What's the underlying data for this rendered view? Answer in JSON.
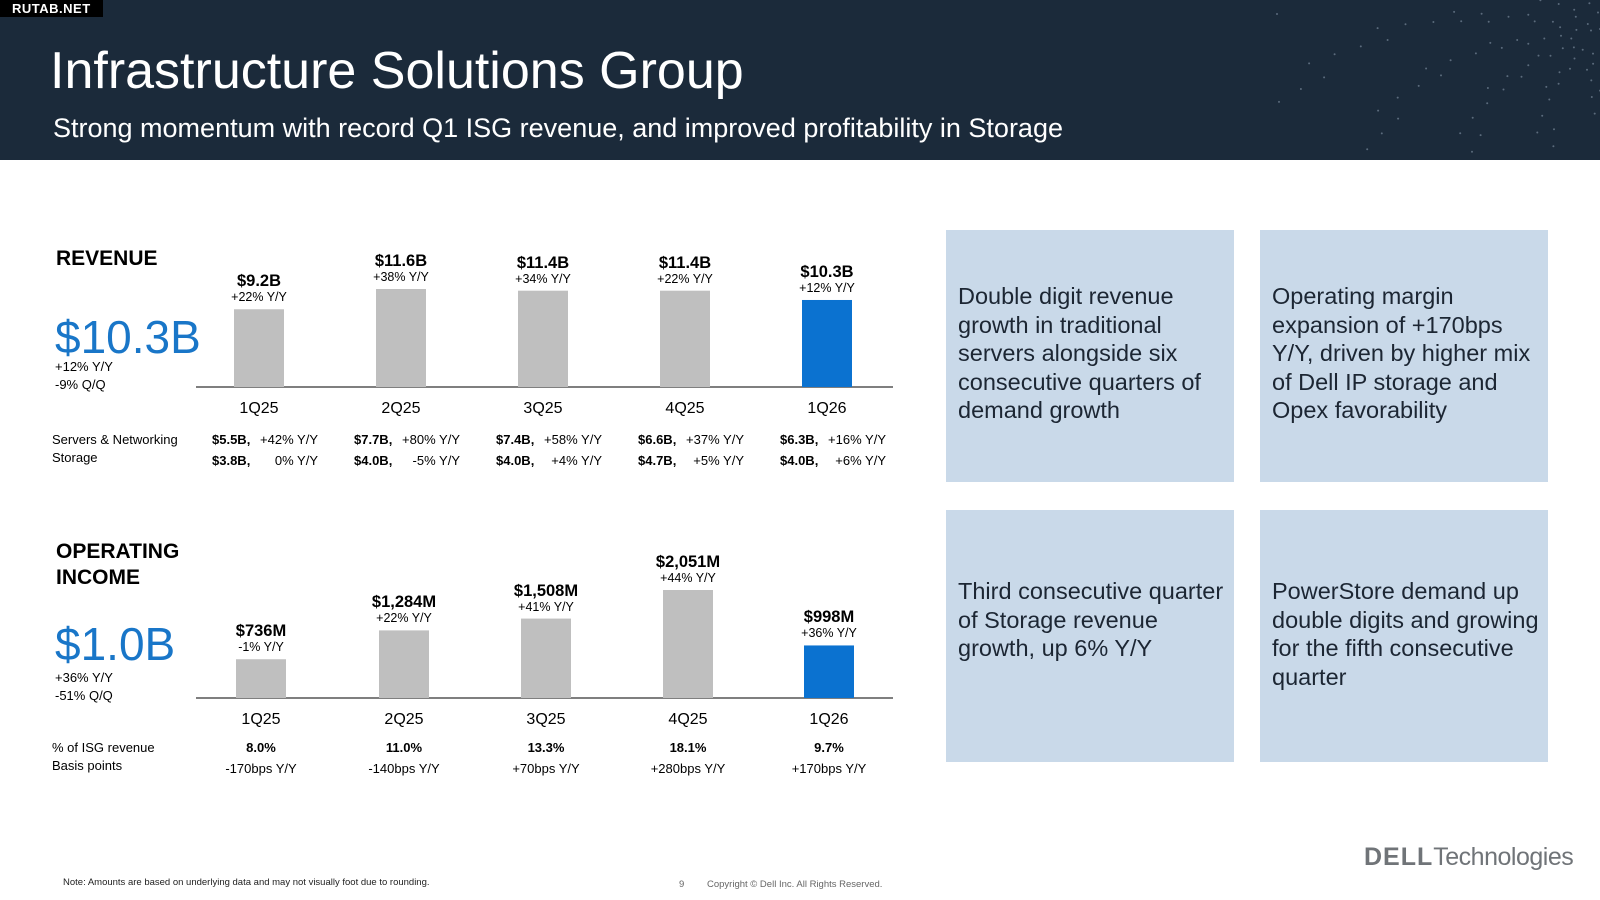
{
  "watermark": "RUTAB.NET",
  "header": {
    "title": "Infrastructure Solutions Group",
    "subtitle": "Strong momentum with record Q1 ISG revenue, and improved profitability in Storage"
  },
  "colors": {
    "header_bg": "#1b2a3a",
    "bar_gray": "#bfbfbf",
    "bar_highlight": "#0b72d0",
    "accent_text": "#1976c8",
    "tile_bg": "#c9d9e9"
  },
  "revenue": {
    "section_title": "REVENUE",
    "big_value": "$10.3B",
    "yy": "+12% Y/Y",
    "qq": "-9% Q/Q",
    "row1_label": "Servers & Networking",
    "row2_label": "Storage",
    "quarters": [
      {
        "q": "1Q25",
        "value": "$9.2B",
        "yy": "+22% Y/Y",
        "sn_val": "$5.5B,",
        "sn_yy": "+42% Y/Y",
        "st_val": "$3.8B,",
        "st_yy": "0% Y/Y"
      },
      {
        "q": "2Q25",
        "value": "$11.6B",
        "yy": "+38% Y/Y",
        "sn_val": "$7.7B,",
        "sn_yy": "+80% Y/Y",
        "st_val": "$4.0B,",
        "st_yy": "-5% Y/Y"
      },
      {
        "q": "3Q25",
        "value": "$11.4B",
        "yy": "+34% Y/Y",
        "sn_val": "$7.4B,",
        "sn_yy": "+58% Y/Y",
        "st_val": "$4.0B,",
        "st_yy": "+4% Y/Y"
      },
      {
        "q": "4Q25",
        "value": "$11.4B",
        "yy": "+22% Y/Y",
        "sn_val": "$6.6B,",
        "sn_yy": "+37% Y/Y",
        "st_val": "$4.7B,",
        "st_yy": "+5% Y/Y"
      },
      {
        "q": "1Q26",
        "value": "$10.3B",
        "yy": "+12% Y/Y",
        "sn_val": "$6.3B,",
        "sn_yy": "+16% Y/Y",
        "st_val": "$4.0B,",
        "st_yy": "+6% Y/Y"
      }
    ]
  },
  "operating": {
    "section_title_1": "OPERATING",
    "section_title_2": "INCOME",
    "big_value": "$1.0B",
    "yy": "+36% Y/Y",
    "qq": "-51% Q/Q",
    "row1_label": "% of ISG revenue",
    "row2_label": "Basis points",
    "quarters": [
      {
        "q": "1Q25",
        "value": "$736M",
        "yy": "-1% Y/Y",
        "pct": "8.0%",
        "bps": "-170bps Y/Y"
      },
      {
        "q": "2Q25",
        "value": "$1,284M",
        "yy": "+22% Y/Y",
        "pct": "11.0%",
        "bps": "-140bps Y/Y"
      },
      {
        "q": "3Q25",
        "value": "$1,508M",
        "yy": "+41% Y/Y",
        "pct": "13.3%",
        "bps": "+70bps Y/Y"
      },
      {
        "q": "4Q25",
        "value": "$2,051M",
        "yy": "+44% Y/Y",
        "pct": "18.1%",
        "bps": "+280bps Y/Y"
      },
      {
        "q": "1Q26",
        "value": "$998M",
        "yy": "+36% Y/Y",
        "pct": "9.7%",
        "bps": "+170bps Y/Y"
      }
    ]
  },
  "chart_data": [
    {
      "type": "bar",
      "title": "REVENUE",
      "categories": [
        "1Q25",
        "2Q25",
        "3Q25",
        "4Q25",
        "1Q26"
      ],
      "values": [
        9.2,
        11.6,
        11.4,
        11.4,
        10.3
      ],
      "labels": [
        "$9.2B",
        "$11.6B",
        "$11.4B",
        "$11.4B",
        "$10.3B"
      ],
      "highlight_index": 4,
      "grid": false
    },
    {
      "type": "bar",
      "title": "OPERATING INCOME",
      "categories": [
        "1Q25",
        "2Q25",
        "3Q25",
        "4Q25",
        "1Q26"
      ],
      "values": [
        736,
        1284,
        1508,
        2051,
        998
      ],
      "labels": [
        "$736M",
        "$1,284M",
        "$1,508M",
        "$2,051M",
        "$998M"
      ],
      "highlight_index": 4,
      "grid": false
    }
  ],
  "tiles": [
    {
      "text": "Double digit revenue growth in traditional servers alongside six consecutive quarters of demand growth"
    },
    {
      "text": "Operating margin expansion of +170bps Y/Y, driven by higher mix of Dell IP storage and Opex favorability"
    },
    {
      "text": "Third consecutive quarter of Storage revenue growth, up 6% Y/Y"
    },
    {
      "text": "PowerStore demand up double digits and growing for the fifth consecutive quarter"
    }
  ],
  "footer": {
    "note": "Note: Amounts are based on underlying data and may not visually foot due to rounding.",
    "page": "9",
    "copyright": "Copyright © Dell Inc. All Rights Reserved.",
    "logo_bold": "DELL",
    "logo_rest": "Technologies"
  }
}
